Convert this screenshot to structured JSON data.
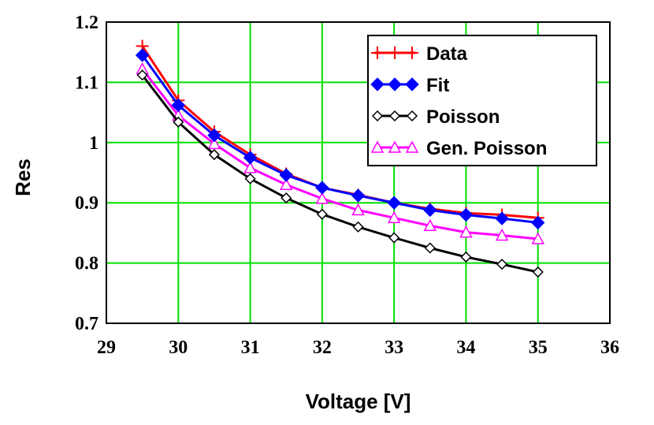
{
  "chart_data": {
    "type": "line",
    "title": "",
    "xlabel": "Voltage [V]",
    "ylabel": "Res",
    "xlim": [
      29,
      36
    ],
    "ylim": [
      0.7,
      1.2
    ],
    "xticks": [
      "29",
      "30",
      "31",
      "32",
      "33",
      "34",
      "35",
      "36"
    ],
    "yticks": [
      "0.7",
      "0.8",
      "0.9",
      "1",
      "1.1",
      "1.2"
    ],
    "grid": true,
    "legend_position": "top-right",
    "series": [
      {
        "name": "Data",
        "color": "#ff0000",
        "marker": "plus",
        "x": [
          29.5,
          30,
          30.5,
          31,
          31.5,
          32,
          32.5,
          33,
          33.5,
          34,
          34.5,
          35
        ],
        "y": [
          1.16,
          1.07,
          1.018,
          0.98,
          0.948,
          0.925,
          0.913,
          0.9,
          0.89,
          0.883,
          0.88,
          0.875
        ]
      },
      {
        "name": "Fit",
        "color": "#0000ff",
        "marker": "diamond-filled",
        "x": [
          29.5,
          30,
          30.5,
          31,
          31.5,
          32,
          32.5,
          33,
          33.5,
          34,
          34.5,
          35
        ],
        "y": [
          1.145,
          1.062,
          1.012,
          0.975,
          0.946,
          0.925,
          0.912,
          0.9,
          0.888,
          0.88,
          0.874,
          0.867
        ]
      },
      {
        "name": "Poisson",
        "color": "#000000",
        "marker": "diamond-open",
        "x": [
          29.5,
          30,
          30.5,
          31,
          31.5,
          32,
          32.5,
          33,
          33.5,
          34,
          34.5,
          35
        ],
        "y": [
          1.112,
          1.034,
          0.98,
          0.94,
          0.908,
          0.881,
          0.86,
          0.842,
          0.825,
          0.81,
          0.798,
          0.785
        ]
      },
      {
        "name": "Gen. Poisson",
        "color": "#ff00ff",
        "marker": "triangle-open",
        "x": [
          29.5,
          30,
          30.5,
          31,
          31.5,
          32,
          32.5,
          33,
          33.5,
          34,
          34.5,
          35
        ],
        "y": [
          1.122,
          1.045,
          0.998,
          0.958,
          0.93,
          0.907,
          0.888,
          0.875,
          0.862,
          0.851,
          0.846,
          0.84
        ]
      }
    ]
  }
}
